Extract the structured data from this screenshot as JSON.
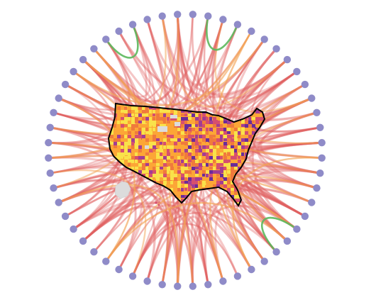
{
  "figure": {
    "type": "circular chord diagram over county-level choropleth map",
    "node_count": 56,
    "node_color": "#8f8bc8",
    "edge_colors": {
      "red": "#e06060",
      "orange": "#f2a253",
      "green": "#5cb85c"
    },
    "map": {
      "outline_color": "#000000",
      "palette": [
        "#f9e24a",
        "#fca636",
        "#f07a3c",
        "#d64f6e",
        "#a23d93",
        "#6a2b9a"
      ],
      "missing_color": "#dcdcdc"
    }
  }
}
